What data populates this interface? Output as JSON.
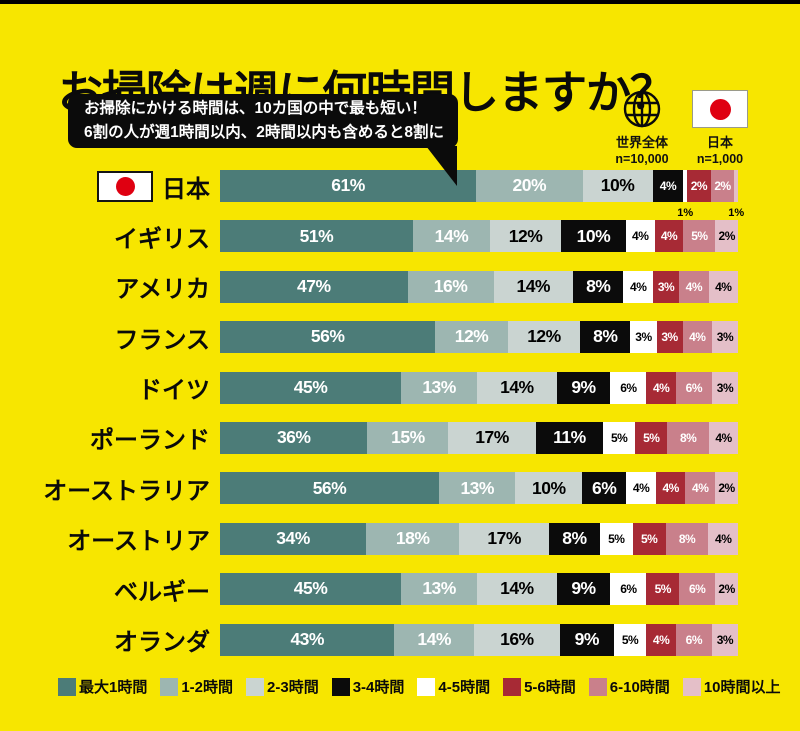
{
  "page": {
    "title": "お掃除は週に何時間しますか？",
    "background_color": "#F7E600"
  },
  "callout": {
    "line1": "お掃除にかける時間は、10カ国の中で最も短い！",
    "line2": "6割の人が週1時間以内、2時間以内も含めると8割に"
  },
  "samples": [
    {
      "icon": "globe-icon",
      "label": "世界全体",
      "n": "n=10,000"
    },
    {
      "icon": "japan-flag-icon",
      "label": "日本",
      "n": "n=1,000"
    }
  ],
  "chart_data": {
    "type": "bar",
    "orientation": "horizontal-stacked",
    "unit": "%",
    "legend_position": "bottom",
    "segments": [
      {
        "label": "最大1時間",
        "color": "#4C7C78",
        "text_color": "#FFFFFF"
      },
      {
        "label": "1-2時間",
        "color": "#9DB6B1",
        "text_color": "#FFFFFF"
      },
      {
        "label": "2-3時間",
        "color": "#CAD4D1",
        "text_color": "#000000"
      },
      {
        "label": "3-4時間",
        "color": "#0B0B0B",
        "text_color": "#FFFFFF"
      },
      {
        "label": "4-5時間",
        "color": "#FFFFFF",
        "text_color": "#000000"
      },
      {
        "label": "5-6時間",
        "color": "#A72A35",
        "text_color": "#FFFFFF"
      },
      {
        "label": "6-10時間",
        "color": "#C9808B",
        "text_color": "#FFFFFF"
      },
      {
        "label": "10時間以上",
        "color": "#E4BFC8",
        "text_color": "#000000"
      }
    ],
    "rows": [
      {
        "country": "日本",
        "flag": true,
        "values": [
          61,
          20,
          10,
          4,
          1,
          2,
          2,
          1
        ]
      },
      {
        "country": "イギリス",
        "flag": false,
        "values": [
          51,
          14,
          12,
          10,
          4,
          4,
          5,
          2
        ]
      },
      {
        "country": "アメリカ",
        "flag": false,
        "values": [
          47,
          16,
          14,
          8,
          4,
          3,
          4,
          4
        ]
      },
      {
        "country": "フランス",
        "flag": false,
        "values": [
          56,
          12,
          12,
          8,
          3,
          3,
          4,
          3
        ]
      },
      {
        "country": "ドイツ",
        "flag": false,
        "values": [
          45,
          13,
          14,
          9,
          6,
          4,
          6,
          3
        ]
      },
      {
        "country": "ポーランド",
        "flag": false,
        "values": [
          36,
          15,
          17,
          11,
          5,
          5,
          8,
          4
        ]
      },
      {
        "country": "オーストラリア",
        "flag": false,
        "values": [
          56,
          13,
          10,
          6,
          4,
          4,
          4,
          2
        ]
      },
      {
        "country": "オーストリア",
        "flag": false,
        "values": [
          34,
          18,
          17,
          8,
          5,
          5,
          8,
          4
        ]
      },
      {
        "country": "ベルギー",
        "flag": false,
        "values": [
          45,
          13,
          14,
          9,
          6,
          5,
          6,
          2
        ]
      },
      {
        "country": "オランダ",
        "flag": false,
        "values": [
          43,
          14,
          16,
          9,
          5,
          4,
          6,
          3
        ]
      }
    ]
  }
}
